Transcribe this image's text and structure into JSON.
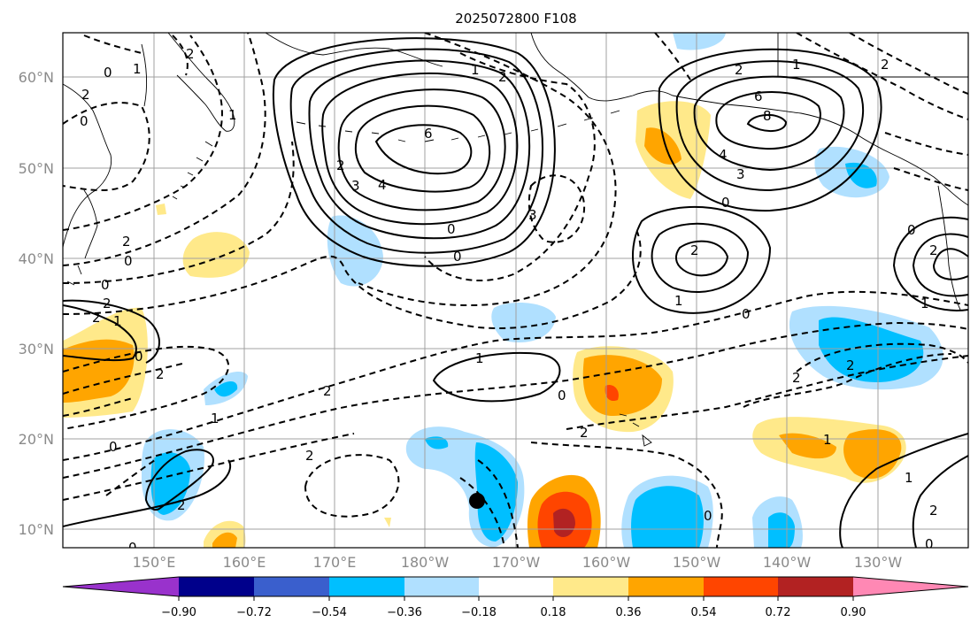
{
  "title": "2025072800 F108",
  "lon_labels": [
    "150°E",
    "160°E",
    "170°E",
    "180°W",
    "170°W",
    "160°W",
    "150°W",
    "140°W",
    "130°W"
  ],
  "lat_labels": [
    "60°N",
    "50°N",
    "40°N",
    "30°N",
    "20°N",
    "10°N"
  ],
  "colorbar": {
    "ticks": [
      "−0.90",
      "−0.72",
      "−0.54",
      "−0.36",
      "−0.18",
      "0.18",
      "0.36",
      "0.54",
      "0.72",
      "0.90"
    ],
    "colors": [
      "#9932cc",
      "#00008b",
      "#3a5fcd",
      "#00bfff",
      "#b0e0ff",
      "#ffffff",
      "#ffe98a",
      "#ffa500",
      "#ff4500",
      "#b22222",
      "#ff88b4"
    ]
  },
  "contour_labels": [
    "0",
    "1",
    "2",
    "2",
    "0",
    "1",
    "2",
    "3",
    "4",
    "6",
    "0",
    "1",
    "2",
    "3",
    "6",
    "8",
    "4",
    "3",
    "0",
    "2",
    "0",
    "2",
    "1",
    "0",
    "0",
    "2",
    "1",
    "0",
    "2",
    "0",
    "2",
    "2",
    "1",
    "0",
    "2",
    "1",
    "1",
    "2",
    "0",
    "2",
    "0",
    "2",
    "2",
    "1",
    "0",
    "2",
    "1",
    "0",
    "2",
    "0",
    "2",
    "2",
    "1",
    "0",
    "2",
    "0",
    "2",
    "1"
  ],
  "map": {
    "lon_range": [
      "140°E",
      "120°W"
    ],
    "lat_range": [
      "8°N",
      "65°N"
    ],
    "marker": "tropical-storm-position"
  }
}
